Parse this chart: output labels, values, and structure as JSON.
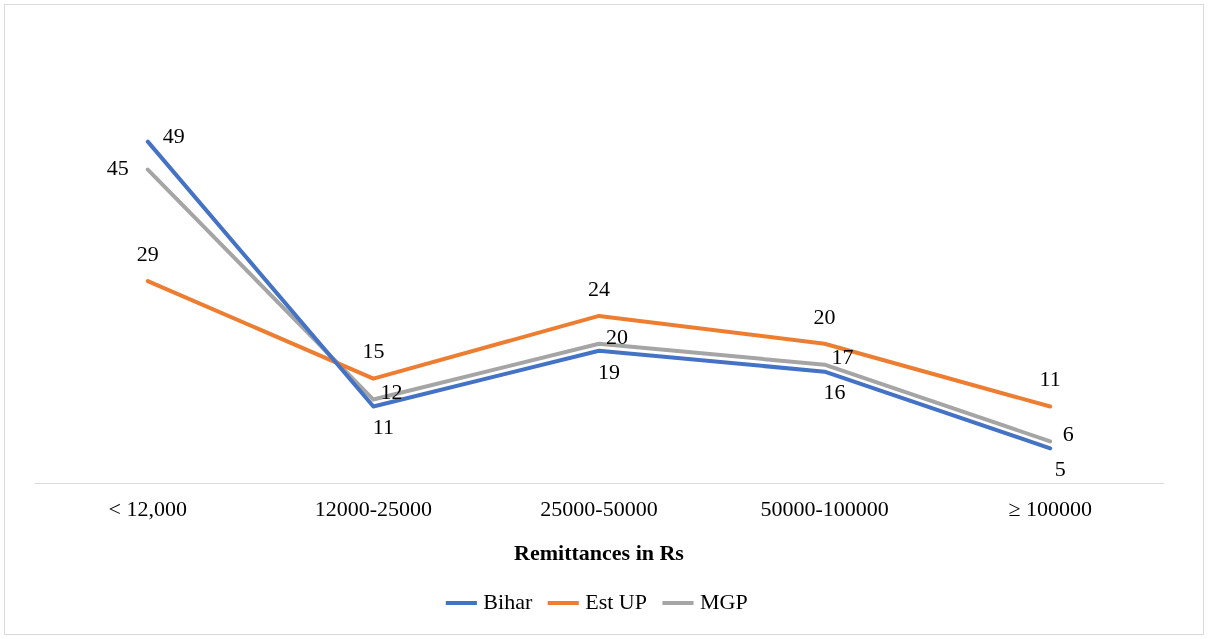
{
  "chart_data": {
    "type": "line",
    "xlabel": "Remittances in Rs",
    "categories": [
      "< 12,000",
      "12000-25000",
      "25000-50000",
      "50000-100000",
      "≥ 100000"
    ],
    "series": [
      {
        "name": "Bihar",
        "color": "#4472c4",
        "values": [
          49,
          11,
          19,
          16,
          5
        ]
      },
      {
        "name": "Est UP",
        "color": "#ed7d31",
        "values": [
          29,
          15,
          24,
          20,
          11
        ]
      },
      {
        "name": "MGP",
        "color": "#a5a5a5",
        "values": [
          45,
          12,
          20,
          17,
          6
        ]
      }
    ],
    "data_labels": true,
    "legend": "bottom",
    "grid": false,
    "marker": "none",
    "line_style": "solid"
  }
}
